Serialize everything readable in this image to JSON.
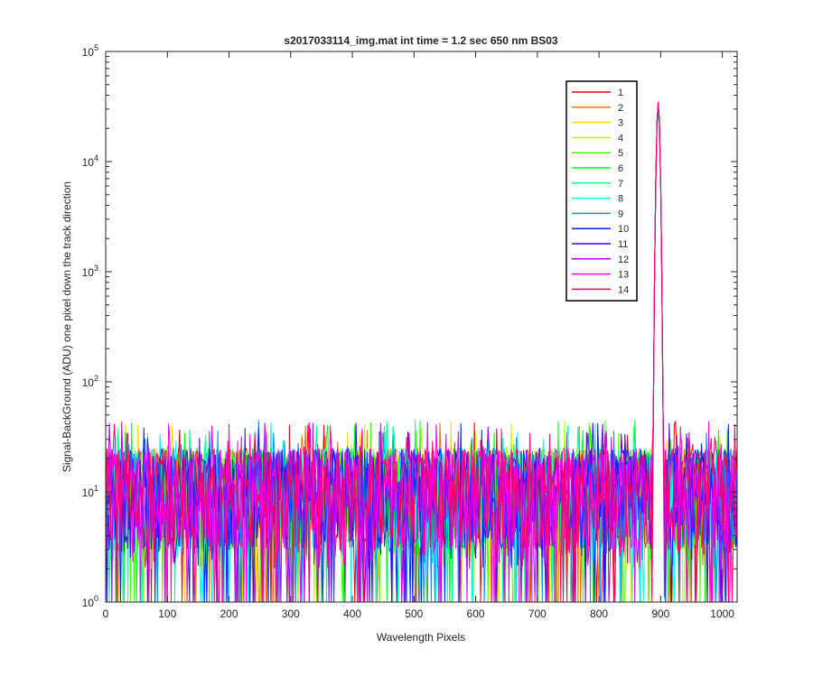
{
  "chart_data": {
    "type": "line",
    "title": "s2017033114_img.mat int time = 1.2 sec  650 nm BS03",
    "xlabel": "Wavelength Pixels",
    "ylabel": "Signal-BackGround (ADU) one pixel down the track direction",
    "xlim": [
      0,
      1024
    ],
    "ylim": [
      1,
      100000
    ],
    "yscale": "log",
    "grid": false,
    "legend_position": "top-right",
    "x_ticks": [
      {
        "value": 0,
        "label": "0"
      },
      {
        "value": 100,
        "label": "100"
      },
      {
        "value": 200,
        "label": "200"
      },
      {
        "value": 300,
        "label": "300"
      },
      {
        "value": 400,
        "label": "400"
      },
      {
        "value": 500,
        "label": "500"
      },
      {
        "value": 600,
        "label": "600"
      },
      {
        "value": 700,
        "label": "700"
      },
      {
        "value": 800,
        "label": "800"
      },
      {
        "value": 900,
        "label": "900"
      },
      {
        "value": 1000,
        "label": "1000"
      }
    ],
    "y_ticks": [
      {
        "value": 1,
        "base": "10",
        "exp": "0"
      },
      {
        "value": 10,
        "base": "10",
        "exp": "1"
      },
      {
        "value": 100,
        "base": "10",
        "exp": "2"
      },
      {
        "value": 1000,
        "base": "10",
        "exp": "3"
      },
      {
        "value": 10000,
        "base": "10",
        "exp": "4"
      },
      {
        "value": 100000,
        "base": "10",
        "exp": "5"
      }
    ],
    "peak": {
      "x": 896,
      "y_range": [
        30000,
        35000
      ]
    },
    "noise_level": {
      "typical": [
        3,
        25
      ],
      "max": 45,
      "min": 1
    },
    "series": [
      {
        "name": "1",
        "color": "#ff0000"
      },
      {
        "name": "2",
        "color": "#ff6d00"
      },
      {
        "name": "3",
        "color": "#ffdb00"
      },
      {
        "name": "4",
        "color": "#b6ff00"
      },
      {
        "name": "5",
        "color": "#49ff00"
      },
      {
        "name": "6",
        "color": "#00ff24"
      },
      {
        "name": "7",
        "color": "#00ff92"
      },
      {
        "name": "8",
        "color": "#00ffff"
      },
      {
        "name": "9",
        "color": "#0092ff"
      },
      {
        "name": "10",
        "color": "#0024ff"
      },
      {
        "name": "11",
        "color": "#4900ff"
      },
      {
        "name": "12",
        "color": "#b600ff"
      },
      {
        "name": "13",
        "color": "#ff00db"
      },
      {
        "name": "14",
        "color": "#ff006d"
      }
    ]
  }
}
